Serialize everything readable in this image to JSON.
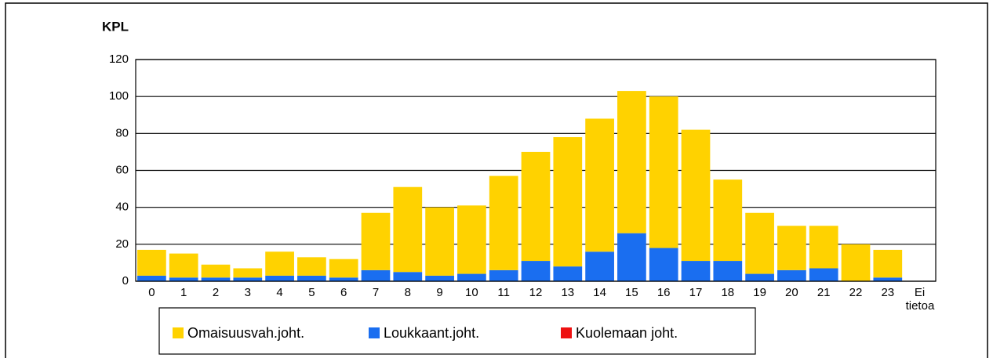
{
  "chart_data": {
    "type": "bar",
    "stacked": true,
    "y_label": "KPL",
    "categories": [
      "0",
      "1",
      "2",
      "3",
      "4",
      "5",
      "6",
      "7",
      "8",
      "9",
      "10",
      "11",
      "12",
      "13",
      "14",
      "15",
      "16",
      "17",
      "18",
      "19",
      "20",
      "21",
      "22",
      "23",
      "Ei tietoa"
    ],
    "series": [
      {
        "name": "Loukkaant.joht.",
        "color": "#1a6ef0",
        "values": [
          3,
          2,
          2,
          2,
          3,
          3,
          2,
          6,
          5,
          3,
          4,
          6,
          11,
          8,
          16,
          26,
          18,
          11,
          11,
          4,
          6,
          7,
          0,
          2,
          0
        ]
      },
      {
        "name": "Omaisuusvah.joht.",
        "color": "#ffd200",
        "values": [
          14,
          13,
          7,
          5,
          13,
          10,
          10,
          31,
          46,
          37,
          37,
          51,
          59,
          70,
          72,
          77,
          82,
          71,
          44,
          33,
          24,
          23,
          20,
          15,
          0
        ]
      },
      {
        "name": "Kuolemaan joht.",
        "color": "#ee1111",
        "values": [
          0,
          0,
          0,
          0,
          0,
          0,
          0,
          0,
          0,
          0,
          0,
          0,
          0,
          0,
          0,
          0,
          0,
          0,
          0,
          0,
          0,
          0,
          0,
          0,
          0
        ]
      }
    ],
    "legend_order": [
      1,
      0,
      2
    ],
    "ylim": [
      0,
      120
    ],
    "yticks": [
      0,
      20,
      40,
      60,
      80,
      100,
      120
    ],
    "grid": true,
    "legend": "bottom"
  }
}
